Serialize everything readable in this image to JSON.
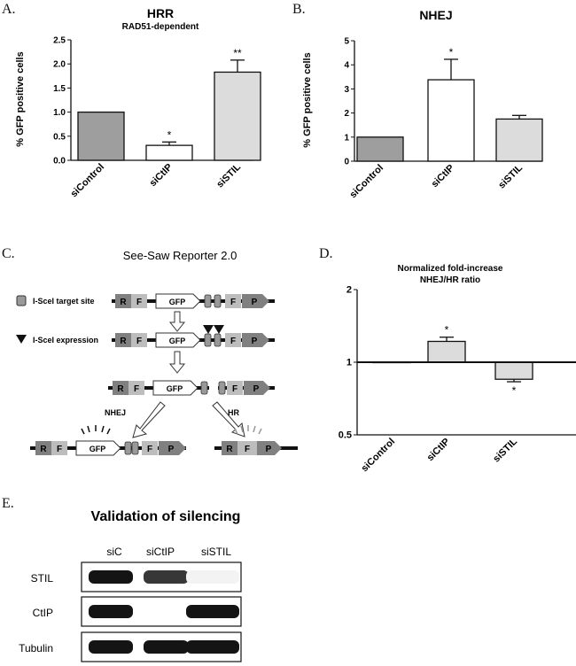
{
  "panels": {
    "A": {
      "letter": "A.",
      "chart_data": {
        "type": "bar",
        "title": "HRR",
        "subtitle": "RAD51-dependent",
        "ylabel": "% GFP positive cells",
        "categories": [
          "siControl",
          "siCtIP",
          "siSTIL"
        ],
        "values": [
          1.0,
          0.31,
          1.83
        ],
        "errors": [
          0,
          0.07,
          0.25
        ],
        "significance": [
          "",
          "*",
          "**"
        ],
        "ylim": [
          0,
          2.5
        ],
        "ticks": [
          "0.0",
          "0.5",
          "1.0",
          "1.5",
          "2.0",
          "2.5"
        ],
        "colors": [
          "#9e9e9e",
          "#ffffff",
          "#dcdcdc"
        ]
      }
    },
    "B": {
      "letter": "B.",
      "chart_data": {
        "type": "bar",
        "title": "NHEJ",
        "ylabel": "% GFP positive cells",
        "categories": [
          "siControl",
          "siCtIP",
          "siSTIL"
        ],
        "values": [
          1.0,
          3.38,
          1.75
        ],
        "errors": [
          0,
          0.85,
          0.15
        ],
        "significance": [
          "",
          "*",
          ""
        ],
        "ylim": [
          0,
          5
        ],
        "ticks": [
          "0",
          "1",
          "2",
          "3",
          "4",
          "5"
        ],
        "colors": [
          "#9e9e9e",
          "#ffffff",
          "#dcdcdc"
        ]
      }
    },
    "C": {
      "letter": "C.",
      "title": "See-Saw Reporter 2.0",
      "legend_target": "I-SceI target site",
      "legend_expression": "I-SceI expression",
      "seg_R": "R",
      "seg_F": "F",
      "seg_P": "P",
      "seg_GFP": "GFP",
      "label_nhej": "NHEJ",
      "label_hr": "HR"
    },
    "D": {
      "letter": "D.",
      "chart_data": {
        "type": "bar",
        "title": "Normalized fold-increase",
        "subtitle": "NHEJ/HR ratio",
        "categories": [
          "siControl",
          "siCtIP",
          "siSTIL"
        ],
        "values": [
          1.0,
          1.22,
          0.85
        ],
        "errors": [
          0,
          0.05,
          0.02
        ],
        "significance": [
          "",
          "*",
          "*"
        ],
        "ylim": [
          0.5,
          2
        ],
        "yscale": "log",
        "ticks": [
          "0.5",
          "1",
          "2"
        ],
        "tick_values": [
          0.5,
          1,
          2
        ],
        "colors": [
          "#9e9e9e",
          "#dcdcdc",
          "#dcdcdc"
        ]
      }
    },
    "E": {
      "letter": "E.",
      "title": "Validation of silencing",
      "lanes": [
        "siC",
        "siCtIP",
        "siSTIL"
      ],
      "rows": [
        {
          "label": "STIL",
          "intensity": [
            1.0,
            0.85,
            0.05
          ]
        },
        {
          "label": "CtIP",
          "intensity": [
            1.0,
            0.0,
            1.0
          ]
        },
        {
          "label": "Tubulin",
          "intensity": [
            1.0,
            1.0,
            1.0
          ]
        }
      ]
    }
  }
}
